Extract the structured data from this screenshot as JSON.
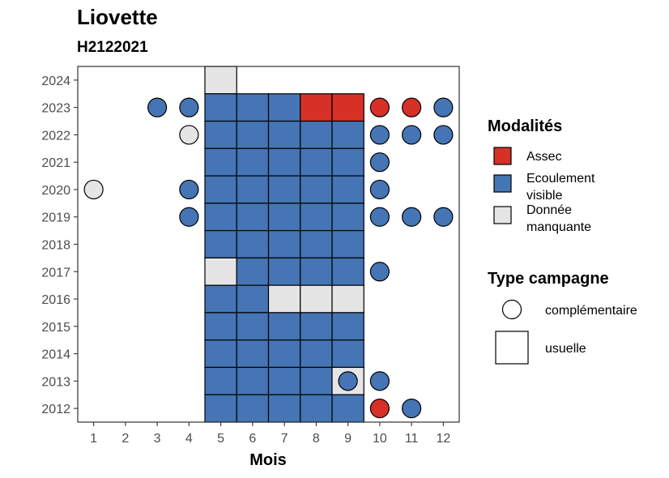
{
  "chart_data": {
    "type": "heatmap",
    "title": "Liovette",
    "subtitle": "H2122021",
    "xlabel": "Mois",
    "ylabel": "",
    "x_ticks": [
      1,
      2,
      3,
      4,
      5,
      6,
      7,
      8,
      9,
      10,
      11,
      12
    ],
    "y_ticks": [
      2024,
      2023,
      2022,
      2021,
      2020,
      2019,
      2018,
      2017,
      2016,
      2015,
      2014,
      2013,
      2012
    ],
    "xlim": [
      0.5,
      12.5
    ],
    "ylim": [
      2011.5,
      2024.5
    ],
    "grid": false,
    "legend_placement": "right",
    "colors": {
      "Assec": "#d73027",
      "Ecoulement visible": "#4575b4",
      "Donnée manquante": "#e5e5e5"
    },
    "legend": {
      "fill": {
        "title": "Modalités",
        "entries": [
          {
            "key": "Assec",
            "lines": [
              "Assec"
            ]
          },
          {
            "key": "Ecoulement visible",
            "lines": [
              "Ecoulement",
              "visible"
            ]
          },
          {
            "key": "Donnée manquante",
            "lines": [
              "Donnée",
              "manquante"
            ]
          }
        ]
      },
      "shape": {
        "title": "Type campagne",
        "entries": [
          {
            "key": "complémentaire",
            "label": "complémentaire",
            "shape": "circle"
          },
          {
            "key": "usuelle",
            "label": "usuelle",
            "shape": "square"
          }
        ]
      }
    },
    "usuelle": [
      {
        "year": 2024,
        "month": 5,
        "value": "Donnée manquante"
      },
      {
        "year": 2023,
        "month": 5,
        "value": "Ecoulement visible"
      },
      {
        "year": 2023,
        "month": 6,
        "value": "Ecoulement visible"
      },
      {
        "year": 2023,
        "month": 7,
        "value": "Ecoulement visible"
      },
      {
        "year": 2023,
        "month": 8,
        "value": "Assec"
      },
      {
        "year": 2023,
        "month": 9,
        "value": "Assec"
      },
      {
        "year": 2022,
        "month": 5,
        "value": "Ecoulement visible"
      },
      {
        "year": 2022,
        "month": 6,
        "value": "Ecoulement visible"
      },
      {
        "year": 2022,
        "month": 7,
        "value": "Ecoulement visible"
      },
      {
        "year": 2022,
        "month": 8,
        "value": "Ecoulement visible"
      },
      {
        "year": 2022,
        "month": 9,
        "value": "Ecoulement visible"
      },
      {
        "year": 2021,
        "month": 5,
        "value": "Ecoulement visible"
      },
      {
        "year": 2021,
        "month": 6,
        "value": "Ecoulement visible"
      },
      {
        "year": 2021,
        "month": 7,
        "value": "Ecoulement visible"
      },
      {
        "year": 2021,
        "month": 8,
        "value": "Ecoulement visible"
      },
      {
        "year": 2021,
        "month": 9,
        "value": "Ecoulement visible"
      },
      {
        "year": 2020,
        "month": 5,
        "value": "Ecoulement visible"
      },
      {
        "year": 2020,
        "month": 6,
        "value": "Ecoulement visible"
      },
      {
        "year": 2020,
        "month": 7,
        "value": "Ecoulement visible"
      },
      {
        "year": 2020,
        "month": 8,
        "value": "Ecoulement visible"
      },
      {
        "year": 2020,
        "month": 9,
        "value": "Ecoulement visible"
      },
      {
        "year": 2019,
        "month": 5,
        "value": "Ecoulement visible"
      },
      {
        "year": 2019,
        "month": 6,
        "value": "Ecoulement visible"
      },
      {
        "year": 2019,
        "month": 7,
        "value": "Ecoulement visible"
      },
      {
        "year": 2019,
        "month": 8,
        "value": "Ecoulement visible"
      },
      {
        "year": 2019,
        "month": 9,
        "value": "Ecoulement visible"
      },
      {
        "year": 2018,
        "month": 5,
        "value": "Ecoulement visible"
      },
      {
        "year": 2018,
        "month": 6,
        "value": "Ecoulement visible"
      },
      {
        "year": 2018,
        "month": 7,
        "value": "Ecoulement visible"
      },
      {
        "year": 2018,
        "month": 8,
        "value": "Ecoulement visible"
      },
      {
        "year": 2018,
        "month": 9,
        "value": "Ecoulement visible"
      },
      {
        "year": 2017,
        "month": 5,
        "value": "Donnée manquante"
      },
      {
        "year": 2017,
        "month": 6,
        "value": "Ecoulement visible"
      },
      {
        "year": 2017,
        "month": 7,
        "value": "Ecoulement visible"
      },
      {
        "year": 2017,
        "month": 8,
        "value": "Ecoulement visible"
      },
      {
        "year": 2017,
        "month": 9,
        "value": "Ecoulement visible"
      },
      {
        "year": 2016,
        "month": 5,
        "value": "Ecoulement visible"
      },
      {
        "year": 2016,
        "month": 6,
        "value": "Ecoulement visible"
      },
      {
        "year": 2016,
        "month": 7,
        "value": "Donnée manquante"
      },
      {
        "year": 2016,
        "month": 8,
        "value": "Donnée manquante"
      },
      {
        "year": 2016,
        "month": 9,
        "value": "Donnée manquante"
      },
      {
        "year": 2015,
        "month": 5,
        "value": "Ecoulement visible"
      },
      {
        "year": 2015,
        "month": 6,
        "value": "Ecoulement visible"
      },
      {
        "year": 2015,
        "month": 7,
        "value": "Ecoulement visible"
      },
      {
        "year": 2015,
        "month": 8,
        "value": "Ecoulement visible"
      },
      {
        "year": 2015,
        "month": 9,
        "value": "Ecoulement visible"
      },
      {
        "year": 2014,
        "month": 5,
        "value": "Ecoulement visible"
      },
      {
        "year": 2014,
        "month": 6,
        "value": "Ecoulement visible"
      },
      {
        "year": 2014,
        "month": 7,
        "value": "Ecoulement visible"
      },
      {
        "year": 2014,
        "month": 8,
        "value": "Ecoulement visible"
      },
      {
        "year": 2014,
        "month": 9,
        "value": "Ecoulement visible"
      },
      {
        "year": 2013,
        "month": 5,
        "value": "Ecoulement visible"
      },
      {
        "year": 2013,
        "month": 6,
        "value": "Ecoulement visible"
      },
      {
        "year": 2013,
        "month": 7,
        "value": "Ecoulement visible"
      },
      {
        "year": 2013,
        "month": 8,
        "value": "Ecoulement visible"
      },
      {
        "year": 2013,
        "month": 9,
        "value": "Donnée manquante"
      },
      {
        "year": 2012,
        "month": 5,
        "value": "Ecoulement visible"
      },
      {
        "year": 2012,
        "month": 6,
        "value": "Ecoulement visible"
      },
      {
        "year": 2012,
        "month": 7,
        "value": "Ecoulement visible"
      },
      {
        "year": 2012,
        "month": 8,
        "value": "Ecoulement visible"
      },
      {
        "year": 2012,
        "month": 9,
        "value": "Ecoulement visible"
      }
    ],
    "complementaire": [
      {
        "year": 2023,
        "month": 3,
        "value": "Ecoulement visible"
      },
      {
        "year": 2023,
        "month": 4,
        "value": "Ecoulement visible"
      },
      {
        "year": 2023,
        "month": 10,
        "value": "Assec"
      },
      {
        "year": 2023,
        "month": 11,
        "value": "Assec"
      },
      {
        "year": 2023,
        "month": 12,
        "value": "Ecoulement visible"
      },
      {
        "year": 2022,
        "month": 4,
        "value": "Donnée manquante"
      },
      {
        "year": 2022,
        "month": 10,
        "value": "Ecoulement visible"
      },
      {
        "year": 2022,
        "month": 11,
        "value": "Ecoulement visible"
      },
      {
        "year": 2022,
        "month": 12,
        "value": "Ecoulement visible"
      },
      {
        "year": 2021,
        "month": 10,
        "value": "Ecoulement visible"
      },
      {
        "year": 2020,
        "month": 1,
        "value": "Donnée manquante"
      },
      {
        "year": 2020,
        "month": 4,
        "value": "Ecoulement visible"
      },
      {
        "year": 2020,
        "month": 10,
        "value": "Ecoulement visible"
      },
      {
        "year": 2019,
        "month": 4,
        "value": "Ecoulement visible"
      },
      {
        "year": 2019,
        "month": 10,
        "value": "Ecoulement visible"
      },
      {
        "year": 2019,
        "month": 11,
        "value": "Ecoulement visible"
      },
      {
        "year": 2019,
        "month": 12,
        "value": "Ecoulement visible"
      },
      {
        "year": 2017,
        "month": 10,
        "value": "Ecoulement visible"
      },
      {
        "year": 2013,
        "month": 9,
        "value": "Ecoulement visible"
      },
      {
        "year": 2013,
        "month": 10,
        "value": "Ecoulement visible"
      },
      {
        "year": 2012,
        "month": 10,
        "value": "Assec"
      },
      {
        "year": 2012,
        "month": 11,
        "value": "Ecoulement visible"
      }
    ]
  }
}
